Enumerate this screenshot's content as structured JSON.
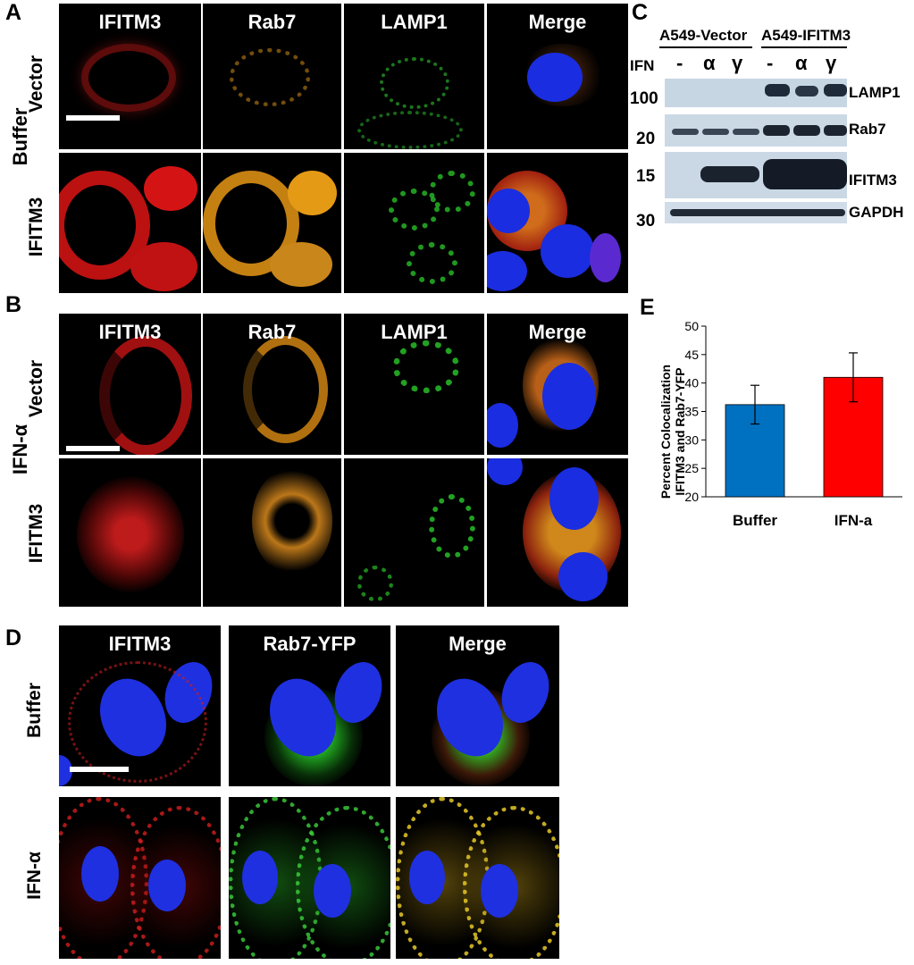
{
  "panels": {
    "A": {
      "letter": "A",
      "condition": "Buffer",
      "channels": [
        "IFITM3",
        "Rab7",
        "LAMP1",
        "Merge"
      ],
      "rows": [
        "Vector",
        "IFITM3"
      ]
    },
    "B": {
      "letter": "B",
      "condition": "IFN-α",
      "channels": [
        "IFITM3",
        "Rab7",
        "LAMP1",
        "Merge"
      ],
      "rows": [
        "Vector",
        "IFITM3"
      ]
    },
    "C": {
      "letter": "C",
      "groups": [
        "A549-Vector",
        "A549-IFITM3"
      ],
      "ifn_label": "IFN",
      "lanes": [
        "-",
        "α",
        "γ",
        "-",
        "α",
        "γ"
      ],
      "bands": [
        {
          "mw": "100",
          "protein": "LAMP1"
        },
        {
          "mw": "20",
          "protein": "Rab7"
        },
        {
          "mw": "15",
          "protein": "IFITM3"
        },
        {
          "mw": "30",
          "protein": "GAPDH"
        }
      ]
    },
    "D": {
      "letter": "D",
      "channels": [
        "IFITM3",
        "Rab7-YFP",
        "Merge"
      ],
      "rows": [
        "Buffer",
        "IFN-α"
      ]
    },
    "E": {
      "letter": "E",
      "ylabel_line1": "Percent Colocalization",
      "ylabel_line2": "IFITM3 and Rab7-YFP"
    }
  },
  "chart_data": {
    "type": "bar",
    "categories": [
      "Buffer",
      "IFN-a"
    ],
    "values": [
      36.2,
      41.0
    ],
    "errors": [
      3.4,
      4.3
    ],
    "colors": [
      "#0070c0",
      "#ff0000"
    ],
    "ylim": [
      20,
      50
    ],
    "yticks": [
      20,
      25,
      30,
      35,
      40,
      45,
      50
    ],
    "xlabel": "",
    "ylabel": "Percent Colocalization IFITM3 and Rab7-YFP",
    "grid": false
  }
}
